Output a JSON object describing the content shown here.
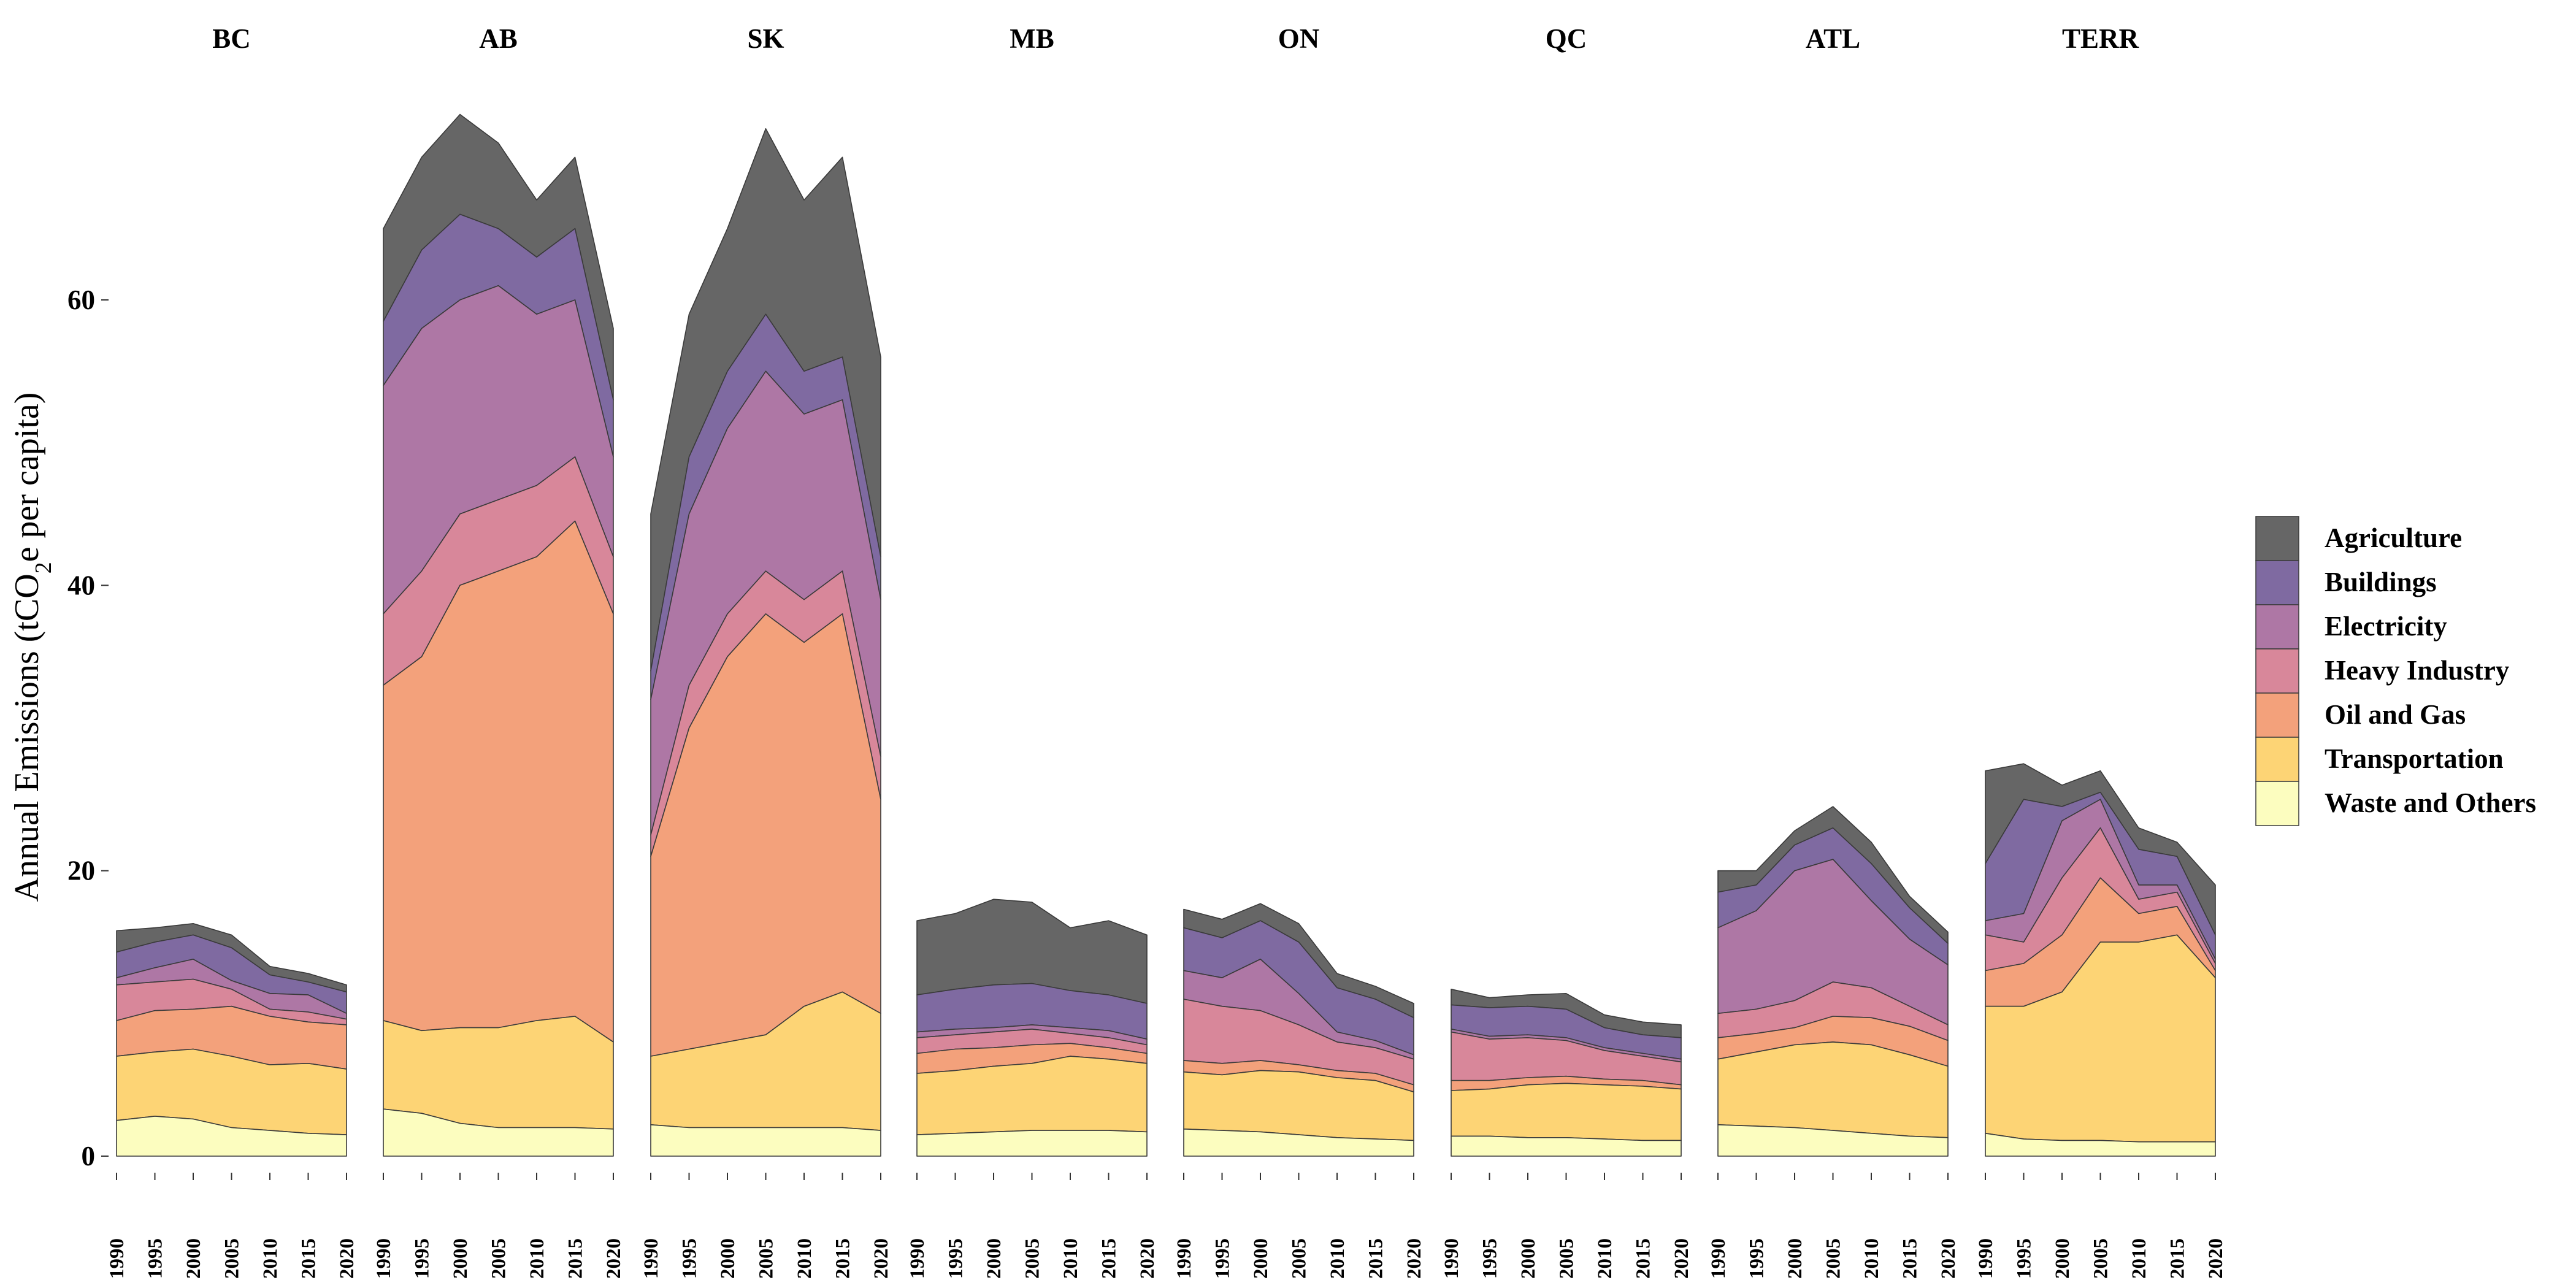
{
  "chart_data": {
    "type": "area",
    "ylabel_main": "Annual Emissions (tCO",
    "ylabel_sub": "2",
    "ylabel_tail": "e per capita)",
    "y_ticks": [
      0,
      20,
      40,
      60
    ],
    "ylim": [
      0,
      75
    ],
    "x_ticks": [
      1990,
      1995,
      2000,
      2005,
      2010,
      2015,
      2020
    ],
    "x_anchors": [
      1990,
      1995,
      2000,
      2005,
      2010,
      2015,
      2020
    ],
    "legend_position": "right",
    "grid": false,
    "sectors": [
      {
        "name": "Waste and Others",
        "color": "#FCFDBF"
      },
      {
        "name": "Transportation",
        "color": "#FDD475"
      },
      {
        "name": "Oil and Gas",
        "color": "#F3A17B"
      },
      {
        "name": "Heavy Industry",
        "color": "#D8879A"
      },
      {
        "name": "Electricity",
        "color": "#AE77A5"
      },
      {
        "name": "Buildings",
        "color": "#7F6AA1"
      },
      {
        "name": "Agriculture",
        "color": "#666666"
      }
    ],
    "legend_order": [
      "Agriculture",
      "Buildings",
      "Electricity",
      "Heavy Industry",
      "Oil and Gas",
      "Transportation",
      "Waste and Others"
    ],
    "facets": [
      {
        "title": "BC",
        "cumulative": [
          [
            2.5,
            2.8,
            2.6,
            2.0,
            1.8,
            1.6,
            1.5
          ],
          [
            7.0,
            7.3,
            7.5,
            7.0,
            6.4,
            6.5,
            6.1
          ],
          [
            9.5,
            10.2,
            10.3,
            10.5,
            9.8,
            9.4,
            9.2
          ],
          [
            12.0,
            12.2,
            12.4,
            11.7,
            10.3,
            10.1,
            9.6
          ],
          [
            12.5,
            13.2,
            13.8,
            12.3,
            11.4,
            11.3,
            10.0
          ],
          [
            14.3,
            15.0,
            15.5,
            14.6,
            12.7,
            12.2,
            11.5
          ],
          [
            15.8,
            16.0,
            16.3,
            15.5,
            13.3,
            12.8,
            12.0
          ]
        ]
      },
      {
        "title": "AB",
        "cumulative": [
          [
            3.3,
            3.0,
            2.3,
            2.0,
            2.0,
            2.0,
            1.9
          ],
          [
            9.5,
            8.8,
            9.0,
            9.0,
            9.5,
            9.8,
            8.0
          ],
          [
            33.0,
            35.0,
            40.0,
            41.0,
            42.0,
            44.5,
            38.0
          ],
          [
            38.0,
            41.0,
            45.0,
            46.0,
            47.0,
            49.0,
            42.0
          ],
          [
            54.0,
            58.0,
            60.0,
            61.0,
            59.0,
            60.0,
            49.0
          ],
          [
            58.5,
            63.5,
            66.0,
            65.0,
            63.0,
            65.0,
            53.0
          ],
          [
            65.0,
            70.0,
            73.0,
            71.0,
            67.0,
            70.0,
            58.0
          ]
        ]
      },
      {
        "title": "SK",
        "cumulative": [
          [
            2.2,
            2.0,
            2.0,
            2.0,
            2.0,
            2.0,
            1.8
          ],
          [
            7.0,
            7.5,
            8.0,
            8.5,
            10.5,
            11.5,
            10.0
          ],
          [
            21.0,
            30.0,
            35.0,
            38.0,
            36.0,
            38.0,
            25.0
          ],
          [
            22.5,
            33.0,
            38.0,
            41.0,
            39.0,
            41.0,
            28.0
          ],
          [
            32.0,
            45.0,
            51.0,
            55.0,
            52.0,
            53.0,
            39.0
          ],
          [
            34.0,
            49.0,
            55.0,
            59.0,
            55.0,
            56.0,
            42.0
          ],
          [
            45.0,
            59.0,
            65.0,
            72.0,
            67.0,
            70.0,
            56.0
          ]
        ]
      },
      {
        "title": "MB",
        "cumulative": [
          [
            1.5,
            1.6,
            1.7,
            1.8,
            1.8,
            1.8,
            1.7
          ],
          [
            5.8,
            6.0,
            6.3,
            6.5,
            7.0,
            6.8,
            6.5
          ],
          [
            7.2,
            7.5,
            7.6,
            7.8,
            7.9,
            7.6,
            7.2
          ],
          [
            8.3,
            8.5,
            8.7,
            8.9,
            8.6,
            8.3,
            7.8
          ],
          [
            8.7,
            8.9,
            9.0,
            9.2,
            9.0,
            8.8,
            8.2
          ],
          [
            11.3,
            11.7,
            12.0,
            12.1,
            11.6,
            11.3,
            10.7
          ],
          [
            16.5,
            17.0,
            18.0,
            17.8,
            16.0,
            16.5,
            15.5
          ]
        ]
      },
      {
        "title": "ON",
        "cumulative": [
          [
            1.9,
            1.8,
            1.7,
            1.5,
            1.3,
            1.2,
            1.1
          ],
          [
            5.9,
            5.7,
            6.0,
            5.9,
            5.5,
            5.3,
            4.5
          ],
          [
            6.7,
            6.5,
            6.7,
            6.4,
            6.0,
            5.8,
            5.0
          ],
          [
            11.0,
            10.5,
            10.2,
            9.2,
            8.0,
            7.6,
            6.8
          ],
          [
            13.0,
            12.5,
            13.8,
            11.4,
            8.7,
            8.1,
            7.1
          ],
          [
            16.0,
            15.3,
            16.5,
            15.0,
            11.8,
            11.0,
            9.7
          ],
          [
            17.3,
            16.6,
            17.7,
            16.3,
            12.8,
            11.9,
            10.7
          ]
        ]
      },
      {
        "title": "QC",
        "cumulative": [
          [
            1.4,
            1.4,
            1.3,
            1.3,
            1.2,
            1.1,
            1.1
          ],
          [
            4.6,
            4.7,
            5.0,
            5.1,
            5.0,
            4.9,
            4.7
          ],
          [
            5.3,
            5.3,
            5.5,
            5.6,
            5.4,
            5.3,
            5.0
          ],
          [
            8.7,
            8.2,
            8.3,
            8.1,
            7.4,
            7.0,
            6.6
          ],
          [
            8.9,
            8.4,
            8.5,
            8.3,
            7.6,
            7.2,
            6.8
          ],
          [
            10.6,
            10.4,
            10.5,
            10.3,
            9.0,
            8.5,
            8.3
          ],
          [
            11.7,
            11.1,
            11.3,
            11.4,
            9.9,
            9.4,
            9.2
          ]
        ]
      },
      {
        "title": "ATL",
        "cumulative": [
          [
            2.2,
            2.1,
            2.0,
            1.8,
            1.6,
            1.4,
            1.3
          ],
          [
            6.8,
            7.3,
            7.8,
            8.0,
            7.8,
            7.1,
            6.3
          ],
          [
            8.3,
            8.6,
            9.0,
            9.8,
            9.7,
            9.1,
            8.1
          ],
          [
            10.0,
            10.3,
            10.9,
            12.2,
            11.8,
            10.5,
            9.2
          ],
          [
            16.0,
            17.2,
            20.0,
            20.8,
            17.9,
            15.2,
            13.4
          ],
          [
            18.5,
            19.0,
            21.8,
            23.0,
            20.5,
            17.4,
            14.9
          ],
          [
            20.0,
            20.0,
            22.8,
            24.5,
            22.0,
            18.2,
            15.7
          ]
        ]
      },
      {
        "title": "TERR",
        "cumulative": [
          [
            1.6,
            1.2,
            1.1,
            1.1,
            1.0,
            1.0,
            1.0
          ],
          [
            10.5,
            10.5,
            11.5,
            15.0,
            15.0,
            15.5,
            12.5
          ],
          [
            13.0,
            13.5,
            15.5,
            19.5,
            17.0,
            17.5,
            13.0
          ],
          [
            15.5,
            15.0,
            19.5,
            23.0,
            18.0,
            18.5,
            13.5
          ],
          [
            16.5,
            17.0,
            23.5,
            25.0,
            19.0,
            19.0,
            13.8
          ],
          [
            20.5,
            25.0,
            24.5,
            25.5,
            21.5,
            21.0,
            15.5
          ],
          [
            27.0,
            27.5,
            26.0,
            27.0,
            23.0,
            22.0,
            19.0
          ]
        ]
      }
    ]
  }
}
